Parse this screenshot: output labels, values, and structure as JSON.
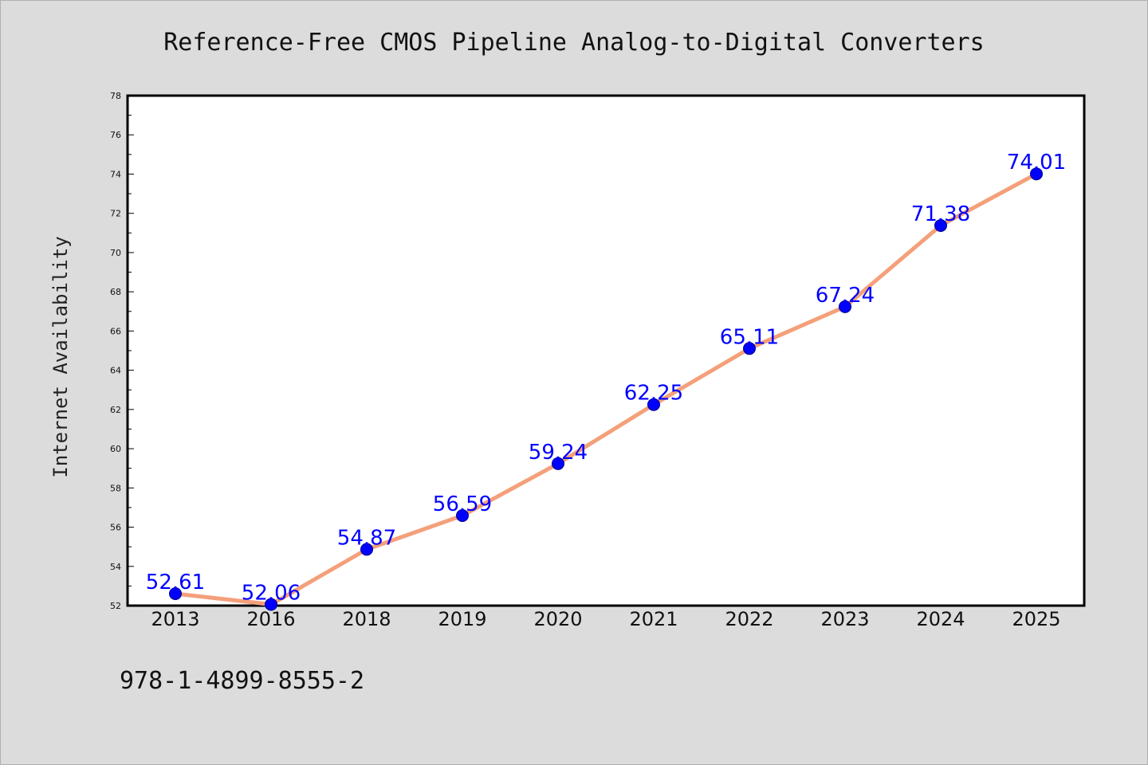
{
  "chart_data": {
    "type": "line",
    "title": "Reference-Free CMOS Pipeline Analog-to-Digital Converters",
    "xlabel": "",
    "ylabel": "Internet Availability",
    "categories": [
      "2013",
      "2016",
      "2018",
      "2019",
      "2020",
      "2021",
      "2022",
      "2023",
      "2024",
      "2025"
    ],
    "values": [
      52.61,
      52.06,
      54.87,
      56.59,
      59.24,
      62.25,
      65.11,
      67.24,
      71.38,
      74.01
    ],
    "data_labels": [
      "52.61",
      "52.06",
      "54.87",
      "56.59",
      "59.24",
      "62.25",
      "65.11",
      "67.24",
      "71.38",
      "74.01"
    ],
    "ylim": [
      52,
      78
    ],
    "y_ticks": [
      "52",
      "54",
      "56",
      "58",
      "60",
      "62",
      "64",
      "66",
      "68",
      "70",
      "72",
      "74",
      "76",
      "78"
    ],
    "grid": false,
    "legend": "none",
    "line_color": "#f4a07a",
    "marker_color": "#0000ff",
    "label_color": "#0000ff"
  },
  "footer": {
    "isbn": "978-1-4899-8555-2"
  }
}
